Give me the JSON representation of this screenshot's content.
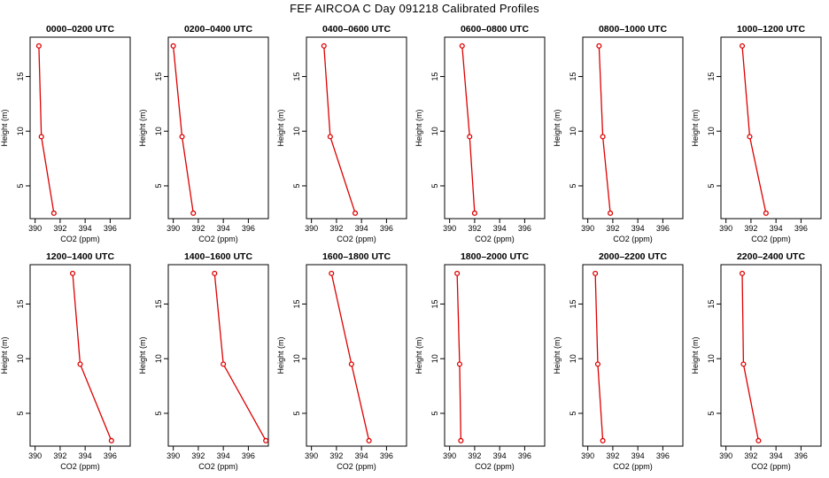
{
  "page": {
    "title": "FEF AIRCOA C  Day 091218  Calibrated Profiles"
  },
  "colors": {
    "series": "#dd0000",
    "axis": "#000000"
  },
  "chart_data": [
    {
      "type": "line",
      "title": "0000–0200 UTC",
      "xlabel": "CO2 (ppm)",
      "ylabel": "Height (m)",
      "xlim": [
        389.6,
        397.6
      ],
      "ylim": [
        2,
        18.6
      ],
      "xticks": [
        390,
        392,
        394,
        396
      ],
      "yticks": [
        5,
        10,
        15
      ],
      "x": [
        390.3,
        390.5,
        391.5
      ],
      "y": [
        17.8,
        9.5,
        2.5
      ]
    },
    {
      "type": "line",
      "title": "0200–0400 UTC",
      "xlabel": "CO2 (ppm)",
      "ylabel": "Height (m)",
      "xlim": [
        389.6,
        397.6
      ],
      "ylim": [
        2,
        18.6
      ],
      "xticks": [
        390,
        392,
        394,
        396
      ],
      "yticks": [
        5,
        10,
        15
      ],
      "x": [
        390.0,
        390.7,
        391.6
      ],
      "y": [
        17.8,
        9.5,
        2.5
      ]
    },
    {
      "type": "line",
      "title": "0400–0600 UTC",
      "xlabel": "CO2 (ppm)",
      "ylabel": "Height (m)",
      "xlim": [
        389.6,
        397.6
      ],
      "ylim": [
        2,
        18.6
      ],
      "xticks": [
        390,
        392,
        394,
        396
      ],
      "yticks": [
        5,
        10,
        15
      ],
      "x": [
        391.0,
        391.5,
        393.5
      ],
      "y": [
        17.8,
        9.5,
        2.5
      ]
    },
    {
      "type": "line",
      "title": "0600–0800 UTC",
      "xlabel": "CO2 (ppm)",
      "ylabel": "Height (m)",
      "xlim": [
        389.6,
        397.6
      ],
      "ylim": [
        2,
        18.6
      ],
      "xticks": [
        390,
        392,
        394,
        396
      ],
      "yticks": [
        5,
        10,
        15
      ],
      "x": [
        391.0,
        391.6,
        392.0
      ],
      "y": [
        17.8,
        9.5,
        2.5
      ]
    },
    {
      "type": "line",
      "title": "0800–1000 UTC",
      "xlabel": "CO2 (ppm)",
      "ylabel": "Height (m)",
      "xlim": [
        389.6,
        397.6
      ],
      "ylim": [
        2,
        18.6
      ],
      "xticks": [
        390,
        392,
        394,
        396
      ],
      "yticks": [
        5,
        10,
        15
      ],
      "x": [
        390.9,
        391.2,
        391.8
      ],
      "y": [
        17.8,
        9.5,
        2.5
      ]
    },
    {
      "type": "line",
      "title": "1000–1200 UTC",
      "xlabel": "CO2 (ppm)",
      "ylabel": "Height (m)",
      "xlim": [
        389.6,
        397.6
      ],
      "ylim": [
        2,
        18.6
      ],
      "xticks": [
        390,
        392,
        394,
        396
      ],
      "yticks": [
        5,
        10,
        15
      ],
      "x": [
        391.3,
        391.9,
        393.2
      ],
      "y": [
        17.8,
        9.5,
        2.5
      ]
    },
    {
      "type": "line",
      "title": "1200–1400 UTC",
      "xlabel": "CO2 (ppm)",
      "ylabel": "Height (m)",
      "xlim": [
        389.6,
        397.6
      ],
      "ylim": [
        2,
        18.6
      ],
      "xticks": [
        390,
        392,
        394,
        396
      ],
      "yticks": [
        5,
        10,
        15
      ],
      "x": [
        393.0,
        393.6,
        396.1
      ],
      "y": [
        17.8,
        9.5,
        2.5
      ]
    },
    {
      "type": "line",
      "title": "1400–1600 UTC",
      "xlabel": "CO2 (ppm)",
      "ylabel": "Height (m)",
      "xlim": [
        389.6,
        397.6
      ],
      "ylim": [
        2,
        18.6
      ],
      "xticks": [
        390,
        392,
        394,
        396
      ],
      "yticks": [
        5,
        10,
        15
      ],
      "x": [
        393.3,
        394.0,
        397.4
      ],
      "y": [
        17.8,
        9.5,
        2.5
      ]
    },
    {
      "type": "line",
      "title": "1600–1800 UTC",
      "xlabel": "CO2 (ppm)",
      "ylabel": "Height (m)",
      "xlim": [
        389.6,
        397.6
      ],
      "ylim": [
        2,
        18.6
      ],
      "xticks": [
        390,
        392,
        394,
        396
      ],
      "yticks": [
        5,
        10,
        15
      ],
      "x": [
        391.6,
        393.2,
        394.6
      ],
      "y": [
        17.8,
        9.5,
        2.5
      ]
    },
    {
      "type": "line",
      "title": "1800–2000 UTC",
      "xlabel": "CO2 (ppm)",
      "ylabel": "Height (m)",
      "xlim": [
        389.6,
        397.6
      ],
      "ylim": [
        2,
        18.6
      ],
      "xticks": [
        390,
        392,
        394,
        396
      ],
      "yticks": [
        5,
        10,
        15
      ],
      "x": [
        390.6,
        390.8,
        390.9
      ],
      "y": [
        17.8,
        9.5,
        2.5
      ]
    },
    {
      "type": "line",
      "title": "2000–2200 UTC",
      "xlabel": "CO2 (ppm)",
      "ylabel": "Height (m)",
      "xlim": [
        389.6,
        397.6
      ],
      "ylim": [
        2,
        18.6
      ],
      "xticks": [
        390,
        392,
        394,
        396
      ],
      "yticks": [
        5,
        10,
        15
      ],
      "x": [
        390.6,
        390.8,
        391.2
      ],
      "y": [
        17.8,
        9.5,
        2.5
      ]
    },
    {
      "type": "line",
      "title": "2200–2400 UTC",
      "xlabel": "CO2 (ppm)",
      "ylabel": "Height (m)",
      "xlim": [
        389.6,
        397.6
      ],
      "ylim": [
        2,
        18.6
      ],
      "xticks": [
        390,
        392,
        394,
        396
      ],
      "yticks": [
        5,
        10,
        15
      ],
      "x": [
        391.3,
        391.4,
        392.6
      ],
      "y": [
        17.8,
        9.5,
        2.5
      ]
    }
  ]
}
